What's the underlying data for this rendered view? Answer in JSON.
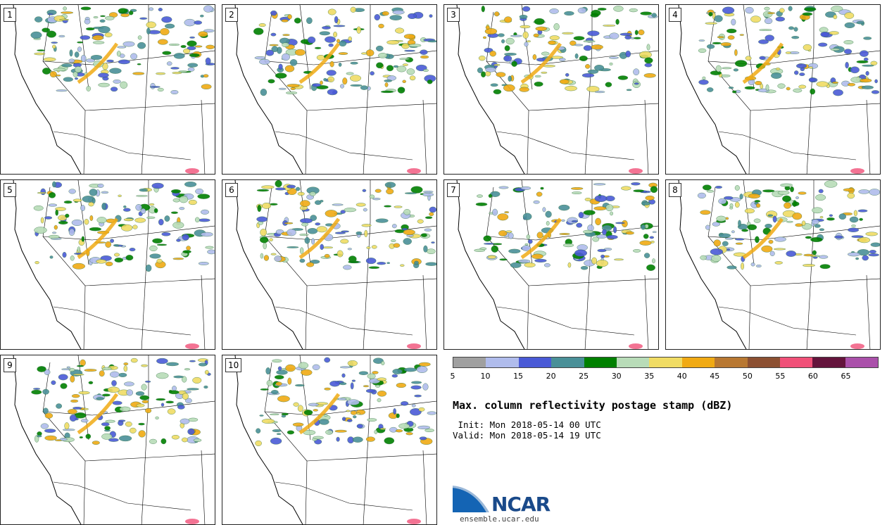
{
  "panels": [
    {
      "id": "1"
    },
    {
      "id": "2"
    },
    {
      "id": "3"
    },
    {
      "id": "4"
    },
    {
      "id": "5"
    },
    {
      "id": "6"
    },
    {
      "id": "7"
    },
    {
      "id": "8"
    },
    {
      "id": "9"
    },
    {
      "id": "10"
    }
  ],
  "colorbar": {
    "colors": [
      "#a0a0a0",
      "#b0bcec",
      "#4a5ad6",
      "#4a9098",
      "#008000",
      "#b8dcb8",
      "#f0dc64",
      "#f0aa14",
      "#b87832",
      "#8c5032",
      "#f05078",
      "#64143c",
      "#aa50aa"
    ],
    "tick_labels": [
      "5",
      "10",
      "15",
      "20",
      "25",
      "30",
      "35",
      "40",
      "45",
      "50",
      "55",
      "60",
      "65"
    ]
  },
  "title": "Max. column reflectivity postage stamp (dBZ)",
  "init": " Init: Mon 2018-05-14 00 UTC",
  "valid": "Valid: Mon 2018-05-14 19 UTC",
  "logo": {
    "text": "NCAR",
    "site": "ensemble.ucar.edu"
  }
}
